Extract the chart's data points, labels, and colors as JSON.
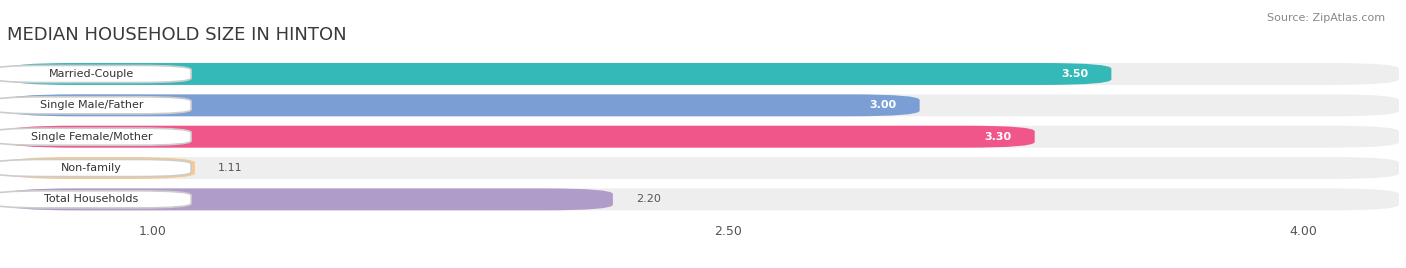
{
  "title": "MEDIAN HOUSEHOLD SIZE IN HINTON",
  "source": "Source: ZipAtlas.com",
  "categories": [
    "Married-Couple",
    "Single Male/Father",
    "Single Female/Mother",
    "Non-family",
    "Total Households"
  ],
  "values": [
    3.5,
    3.0,
    3.3,
    1.11,
    2.2
  ],
  "bar_colors": [
    "#35b8b8",
    "#7b9fd4",
    "#f0568a",
    "#f5c990",
    "#b09cc8"
  ],
  "value_label_colors": [
    "white",
    "white",
    "white",
    "#666666",
    "#666666"
  ],
  "xlim": [
    0.62,
    4.25
  ],
  "xticks": [
    1.0,
    2.5,
    4.0
  ],
  "title_fontsize": 13,
  "value_labels": [
    "3.50",
    "3.00",
    "3.30",
    "1.11",
    "2.20"
  ],
  "background_color": "#ffffff",
  "bar_bg_color": "#eeeeee",
  "bar_gap_color": "#f5f5f5"
}
